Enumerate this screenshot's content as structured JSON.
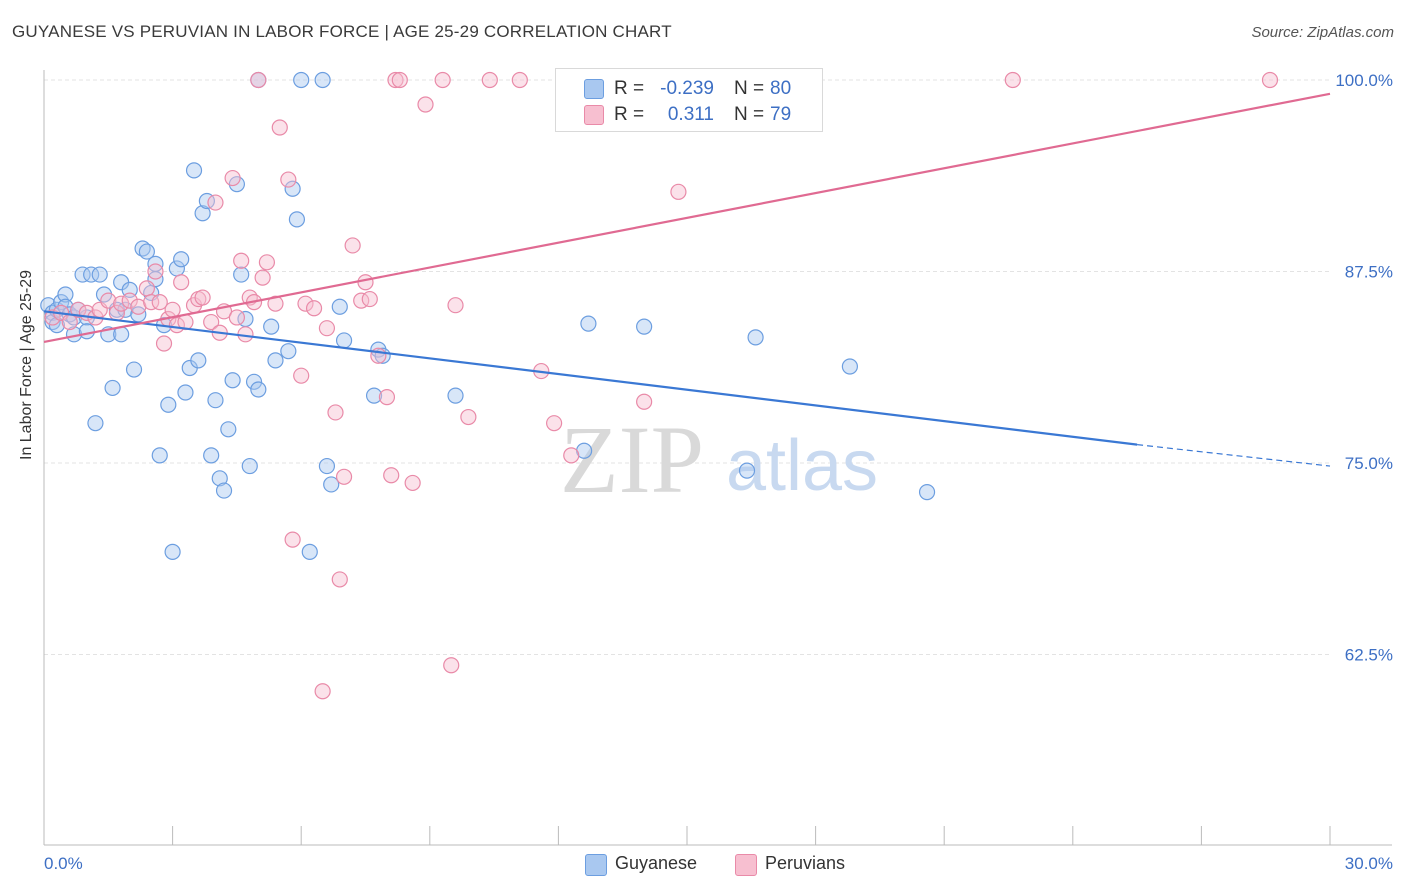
{
  "title": "GUYANESE VS PERUVIAN IN LABOR FORCE | AGE 25-29 CORRELATION CHART",
  "source": "Source: ZipAtlas.com",
  "watermark": {
    "zip": "ZIP",
    "atlas": "atlas"
  },
  "legend_top": [
    {
      "name": "Guyanese",
      "r_label": "R =",
      "r_value": "-0.239",
      "n_label": "N =",
      "n_value": "80",
      "color": "#a9c8f0",
      "border": "#6c9ee0"
    },
    {
      "name": "Peruvians",
      "r_label": "R =",
      "r_value": "0.311",
      "n_label": "N =",
      "n_value": "79",
      "color": "#f7bfd0",
      "border": "#e98aa8"
    }
  ],
  "chart_data": {
    "type": "scatter",
    "title": "GUYANESE VS PERUVIAN IN LABOR FORCE | AGE 25-29 CORRELATION CHART",
    "xlabel": "",
    "ylabel": "In Labor Force | Age 25-29",
    "xlim": [
      0,
      30
    ],
    "ylim": [
      50,
      101
    ],
    "x_tick_labels": [
      "0.0%",
      "30.0%"
    ],
    "y_ticks": [
      62.5,
      75.0,
      87.5,
      100.0
    ],
    "y_tick_labels": [
      "62.5%",
      "75.0%",
      "87.5%",
      "100.0%"
    ],
    "grid": true,
    "legend_position": "top-center",
    "series": [
      {
        "name": "Guyanese",
        "color": "#6c9ee0",
        "fill": "#a9c8f0",
        "trend_color": "#3a78d4",
        "trend": {
          "x0": 0,
          "y0": 84.9,
          "x1": 25.5,
          "y1": 76.2,
          "dash_to_x": 30,
          "dash_y": 74.8
        },
        "points": [
          [
            0.1,
            85.3
          ],
          [
            0.2,
            84.8
          ],
          [
            0.2,
            84.2
          ],
          [
            0.3,
            85.0
          ],
          [
            0.3,
            84.0
          ],
          [
            0.4,
            85.5
          ],
          [
            0.5,
            86.0
          ],
          [
            0.5,
            85.2
          ],
          [
            0.6,
            84.7
          ],
          [
            0.7,
            84.5
          ],
          [
            0.7,
            83.4
          ],
          [
            0.8,
            85.0
          ],
          [
            0.9,
            87.3
          ],
          [
            1.0,
            84.5
          ],
          [
            1.0,
            83.6
          ],
          [
            1.1,
            87.3
          ],
          [
            1.2,
            77.6
          ],
          [
            1.3,
            87.3
          ],
          [
            1.4,
            86.0
          ],
          [
            1.5,
            83.4
          ],
          [
            1.6,
            79.9
          ],
          [
            1.7,
            85.0
          ],
          [
            1.8,
            83.4
          ],
          [
            1.8,
            86.8
          ],
          [
            1.9,
            85.0
          ],
          [
            2.0,
            86.3
          ],
          [
            2.1,
            81.1
          ],
          [
            2.2,
            84.7
          ],
          [
            2.3,
            89.0
          ],
          [
            2.4,
            88.8
          ],
          [
            2.5,
            86.1
          ],
          [
            2.6,
            87.0
          ],
          [
            2.6,
            88.0
          ],
          [
            2.7,
            75.5
          ],
          [
            2.8,
            84.0
          ],
          [
            2.9,
            78.8
          ],
          [
            3.0,
            69.2
          ],
          [
            3.1,
            87.7
          ],
          [
            3.2,
            88.3
          ],
          [
            3.3,
            79.6
          ],
          [
            3.4,
            81.2
          ],
          [
            3.5,
            94.1
          ],
          [
            3.6,
            81.7
          ],
          [
            3.7,
            91.3
          ],
          [
            3.8,
            92.1
          ],
          [
            3.9,
            75.5
          ],
          [
            4.0,
            79.1
          ],
          [
            4.1,
            74.0
          ],
          [
            4.2,
            73.2
          ],
          [
            4.3,
            77.2
          ],
          [
            4.4,
            80.4
          ],
          [
            4.5,
            93.2
          ],
          [
            4.6,
            87.3
          ],
          [
            4.7,
            84.4
          ],
          [
            4.8,
            74.8
          ],
          [
            4.9,
            80.3
          ],
          [
            5.0,
            100
          ],
          [
            5.0,
            79.8
          ],
          [
            5.3,
            83.9
          ],
          [
            5.4,
            81.7
          ],
          [
            5.7,
            82.3
          ],
          [
            5.8,
            92.9
          ],
          [
            5.9,
            90.9
          ],
          [
            6.0,
            100
          ],
          [
            6.2,
            69.2
          ],
          [
            6.5,
            100
          ],
          [
            6.6,
            74.8
          ],
          [
            6.7,
            73.6
          ],
          [
            6.9,
            85.2
          ],
          [
            7.0,
            83.0
          ],
          [
            7.8,
            82.4
          ],
          [
            7.9,
            82.0
          ],
          [
            7.7,
            79.4
          ],
          [
            9.6,
            79.4
          ],
          [
            12.6,
            75.8
          ],
          [
            12.7,
            84.1
          ],
          [
            14.0,
            83.9
          ],
          [
            16.4,
            74.5
          ],
          [
            16.6,
            83.2
          ],
          [
            18.8,
            81.3
          ],
          [
            20.6,
            73.1
          ]
        ]
      },
      {
        "name": "Peruvians",
        "color": "#e98aa8",
        "fill": "#f7bfd0",
        "trend_color": "#e06a92",
        "trend": {
          "x0": 0,
          "y0": 82.9,
          "x1": 30,
          "y1": 99.1
        },
        "points": [
          [
            0.2,
            84.5
          ],
          [
            0.4,
            84.8
          ],
          [
            0.6,
            84.2
          ],
          [
            0.8,
            85.0
          ],
          [
            1.0,
            84.8
          ],
          [
            1.2,
            84.5
          ],
          [
            1.3,
            85.0
          ],
          [
            1.5,
            85.6
          ],
          [
            1.7,
            84.8
          ],
          [
            1.8,
            85.4
          ],
          [
            2.0,
            85.6
          ],
          [
            2.2,
            85.2
          ],
          [
            2.4,
            86.4
          ],
          [
            2.5,
            85.5
          ],
          [
            2.6,
            87.5
          ],
          [
            2.7,
            85.5
          ],
          [
            2.8,
            82.8
          ],
          [
            2.9,
            84.4
          ],
          [
            3.0,
            85.0
          ],
          [
            3.1,
            84.0
          ],
          [
            3.2,
            86.8
          ],
          [
            3.3,
            84.2
          ],
          [
            3.5,
            85.3
          ],
          [
            3.6,
            85.7
          ],
          [
            3.7,
            85.8
          ],
          [
            3.9,
            84.2
          ],
          [
            4.0,
            92.0
          ],
          [
            4.1,
            83.5
          ],
          [
            4.2,
            84.9
          ],
          [
            4.4,
            93.6
          ],
          [
            4.5,
            84.5
          ],
          [
            4.6,
            88.2
          ],
          [
            4.7,
            83.4
          ],
          [
            4.8,
            85.8
          ],
          [
            4.9,
            85.5
          ],
          [
            5.0,
            100
          ],
          [
            5.1,
            87.1
          ],
          [
            5.2,
            88.1
          ],
          [
            5.4,
            85.4
          ],
          [
            5.5,
            96.9
          ],
          [
            5.7,
            93.5
          ],
          [
            5.8,
            70.0
          ],
          [
            6.0,
            80.7
          ],
          [
            6.1,
            85.4
          ],
          [
            6.3,
            85.1
          ],
          [
            6.5,
            60.1
          ],
          [
            6.6,
            83.8
          ],
          [
            6.8,
            78.3
          ],
          [
            6.9,
            67.4
          ],
          [
            7.0,
            74.1
          ],
          [
            7.2,
            89.2
          ],
          [
            7.4,
            85.6
          ],
          [
            7.5,
            86.8
          ],
          [
            7.6,
            85.7
          ],
          [
            7.8,
            82.0
          ],
          [
            8.0,
            79.3
          ],
          [
            8.1,
            74.2
          ],
          [
            8.2,
            100
          ],
          [
            8.3,
            100
          ],
          [
            8.6,
            73.7
          ],
          [
            8.9,
            98.4
          ],
          [
            9.3,
            100
          ],
          [
            9.5,
            61.8
          ],
          [
            9.6,
            85.3
          ],
          [
            9.9,
            78.0
          ],
          [
            10.4,
            100
          ],
          [
            11.1,
            100
          ],
          [
            11.6,
            81.0
          ],
          [
            11.9,
            77.6
          ],
          [
            12.3,
            75.5
          ],
          [
            12.2,
            100
          ],
          [
            13.1,
            100
          ],
          [
            14.0,
            79.0
          ],
          [
            14.6,
            100
          ],
          [
            14.8,
            92.7
          ],
          [
            16.6,
            100
          ],
          [
            16.9,
            100
          ],
          [
            22.6,
            100
          ],
          [
            28.6,
            100
          ]
        ]
      }
    ]
  }
}
